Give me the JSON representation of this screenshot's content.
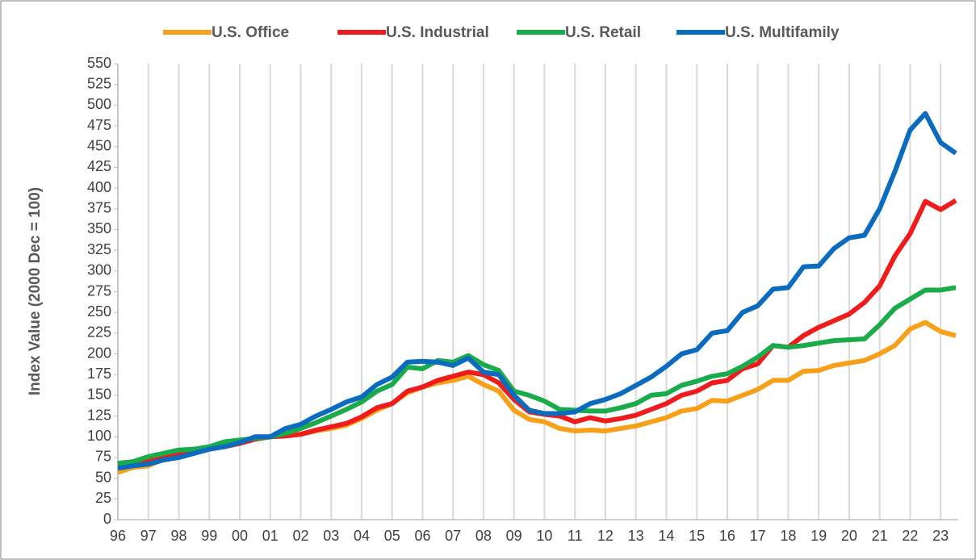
{
  "chart_data": {
    "type": "line",
    "ylabel": "Index Value (2000 Dec = 100)",
    "x": [
      1996,
      1996.5,
      1997,
      1997.5,
      1998,
      1998.5,
      1999,
      1999.5,
      2000,
      2000.5,
      2001,
      2001.5,
      2002,
      2002.5,
      2003,
      2003.5,
      2004,
      2004.5,
      2005,
      2005.5,
      2006,
      2006.5,
      2007,
      2007.5,
      2008,
      2008.5,
      2009,
      2009.5,
      2010,
      2010.5,
      2011,
      2011.5,
      2012,
      2012.5,
      2013,
      2013.5,
      2014,
      2014.5,
      2015,
      2015.5,
      2016,
      2016.5,
      2017,
      2017.5,
      2018,
      2018.5,
      2019,
      2019.5,
      2020,
      2020.5,
      2021,
      2021.5,
      2022,
      2022.5,
      2023,
      2023.5
    ],
    "series": [
      {
        "name": "U.S. Office",
        "color": "#f7a11a",
        "values": [
          57,
          63,
          65,
          73,
          78,
          82,
          85,
          88,
          92,
          98,
          100,
          101,
          103,
          107,
          110,
          114,
          122,
          132,
          140,
          153,
          160,
          165,
          168,
          173,
          163,
          155,
          132,
          121,
          118,
          110,
          107,
          108,
          107,
          110,
          113,
          118,
          123,
          131,
          134,
          144,
          143,
          150,
          157,
          168,
          168,
          179,
          180,
          186,
          189,
          192,
          200,
          210,
          230,
          238,
          227,
          222
        ]
      },
      {
        "name": "U.S. Industrial",
        "color": "#ee1c1c",
        "values": [
          67,
          70,
          72,
          76,
          80,
          83,
          86,
          88,
          92,
          97,
          100,
          101,
          103,
          108,
          112,
          116,
          124,
          135,
          140,
          155,
          160,
          168,
          173,
          178,
          175,
          165,
          145,
          130,
          127,
          125,
          118,
          123,
          119,
          122,
          126,
          133,
          140,
          150,
          155,
          165,
          168,
          182,
          188,
          210,
          208,
          222,
          232,
          240,
          248,
          262,
          282,
          318,
          345,
          384,
          374,
          385
        ]
      },
      {
        "name": "U.S. Retail",
        "color": "#1aab4b",
        "values": [
          68,
          70,
          76,
          80,
          84,
          85,
          88,
          94,
          96,
          98,
          100,
          104,
          110,
          117,
          125,
          133,
          142,
          155,
          163,
          184,
          182,
          192,
          190,
          198,
          187,
          180,
          155,
          150,
          143,
          133,
          132,
          131,
          131,
          135,
          140,
          150,
          152,
          162,
          167,
          173,
          176,
          185,
          196,
          210,
          208,
          210,
          213,
          216,
          217,
          218,
          235,
          255,
          266,
          277,
          277,
          280
        ]
      },
      {
        "name": "U.S. Multifamily",
        "color": "#0b6cbf",
        "values": [
          62,
          65,
          67,
          72,
          75,
          80,
          85,
          88,
          93,
          100,
          100,
          110,
          115,
          125,
          133,
          142,
          148,
          163,
          172,
          190,
          191,
          190,
          186,
          195,
          178,
          175,
          150,
          132,
          128,
          128,
          130,
          140,
          145,
          152,
          162,
          172,
          185,
          200,
          205,
          225,
          228,
          250,
          258,
          278,
          280,
          305,
          306,
          327,
          340,
          343,
          375,
          420,
          470,
          490,
          455,
          442
        ]
      }
    ],
    "xlim": [
      1996,
      2023.5
    ],
    "xticks": [
      {
        "value": 1996,
        "label": "96"
      },
      {
        "value": 1997,
        "label": "97"
      },
      {
        "value": 1998,
        "label": "98"
      },
      {
        "value": 1999,
        "label": "99"
      },
      {
        "value": 2000,
        "label": "00"
      },
      {
        "value": 2001,
        "label": "01"
      },
      {
        "value": 2002,
        "label": "02"
      },
      {
        "value": 2003,
        "label": "03"
      },
      {
        "value": 2004,
        "label": "04"
      },
      {
        "value": 2005,
        "label": "05"
      },
      {
        "value": 2006,
        "label": "06"
      },
      {
        "value": 2007,
        "label": "07"
      },
      {
        "value": 2008,
        "label": "08"
      },
      {
        "value": 2009,
        "label": "09"
      },
      {
        "value": 2010,
        "label": "10"
      },
      {
        "value": 2011,
        "label": "11"
      },
      {
        "value": 2012,
        "label": "12"
      },
      {
        "value": 2013,
        "label": "13"
      },
      {
        "value": 2014,
        "label": "14"
      },
      {
        "value": 2015,
        "label": "15"
      },
      {
        "value": 2016,
        "label": "16"
      },
      {
        "value": 2017,
        "label": "17"
      },
      {
        "value": 2018,
        "label": "18"
      },
      {
        "value": 2019,
        "label": "19"
      },
      {
        "value": 2020,
        "label": "20"
      },
      {
        "value": 2021,
        "label": "21"
      },
      {
        "value": 2022,
        "label": "22"
      },
      {
        "value": 2023,
        "label": "23"
      }
    ],
    "ylim": [
      0,
      550
    ],
    "yticks": [
      0,
      25,
      50,
      75,
      100,
      125,
      150,
      175,
      200,
      225,
      250,
      275,
      300,
      325,
      350,
      375,
      400,
      425,
      450,
      475,
      500,
      525,
      550
    ],
    "grid": "x",
    "legend": "top"
  }
}
